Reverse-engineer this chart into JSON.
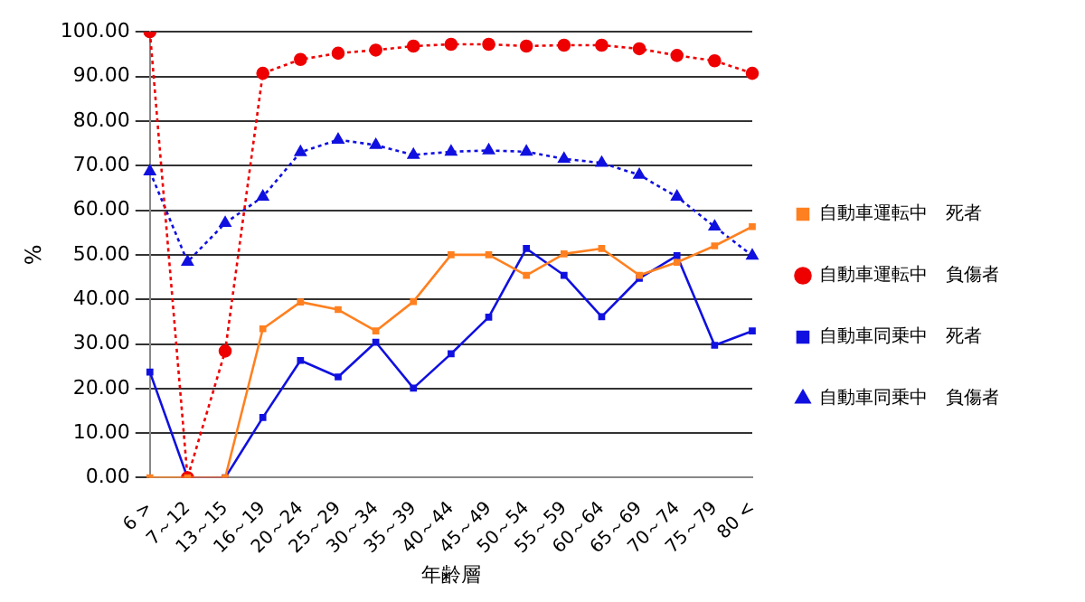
{
  "chart_data": {
    "type": "line",
    "xlabel": "年齢層",
    "ylabel": "%",
    "categories": [
      "6 >",
      "7～12",
      "13～15",
      "16～19",
      "20～24",
      "25～29",
      "30～34",
      "35～39",
      "40～44",
      "45～49",
      "50～54",
      "55～59",
      "60～64",
      "65～69",
      "70～74",
      "75～79",
      "80 <"
    ],
    "series": [
      {
        "name": "自動車運転中　死者",
        "color": "#ff8020",
        "marker": "square",
        "line_style": "solid",
        "values": [
          0,
          0,
          0,
          33.4,
          39.4,
          37.7,
          32.9,
          39.5,
          50,
          50,
          45.4,
          50.2,
          51.4,
          45.4,
          48.3,
          52,
          56.3
        ]
      },
      {
        "name": "自動車運転中　負傷者",
        "color": "#ee0000",
        "marker": "circle",
        "line_style": "dotted",
        "values": [
          100,
          0,
          28.4,
          90.7,
          93.8,
          95.2,
          95.9,
          96.8,
          97.2,
          97.2,
          96.8,
          97,
          97,
          96.2,
          94.7,
          93.5,
          90.7
        ]
      },
      {
        "name": "自動車同乗中　死者",
        "color": "#1010e0",
        "marker": "square",
        "line_style": "solid",
        "values": [
          23.7,
          0,
          0,
          13.5,
          26.3,
          22.6,
          30.4,
          20.1,
          27.8,
          36,
          51.4,
          45.4,
          36.1,
          44.7,
          49.8,
          29.7,
          32.9
        ]
      },
      {
        "name": "自動車同乗中　負傷者",
        "color": "#1010e0",
        "marker": "triangle",
        "line_style": "dotted",
        "values": [
          68.7,
          48.4,
          57.1,
          63,
          73,
          75.8,
          74.6,
          72.4,
          73.1,
          73.4,
          73.1,
          71.5,
          70.6,
          67.9,
          63,
          56.3,
          49.8
        ]
      }
    ],
    "ylim": [
      0,
      100
    ],
    "yticks": [
      {
        "value": 0,
        "label": "0.00"
      },
      {
        "value": 10,
        "label": "10.00"
      },
      {
        "value": 20,
        "label": "20.00"
      },
      {
        "value": 30,
        "label": "30.00"
      },
      {
        "value": 40,
        "label": "40.00"
      },
      {
        "value": 50,
        "label": "50.00"
      },
      {
        "value": 60,
        "label": "60.00"
      },
      {
        "value": 70,
        "label": "70.00"
      },
      {
        "value": 80,
        "label": "80.00"
      },
      {
        "value": 90,
        "label": "90.00"
      },
      {
        "value": 100,
        "label": "100.00"
      }
    ],
    "grid": "y",
    "legend": "right"
  }
}
